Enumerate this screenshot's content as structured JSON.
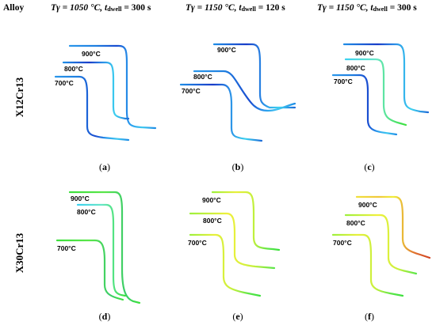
{
  "header": {
    "alloy": "Alloy",
    "columns": [
      {
        "t_gamma": "Tγ = 1050 °C,",
        "dwell_prefix": "t",
        "dwell_sub": "dwell",
        "dwell_value": "= 300 s"
      },
      {
        "t_gamma": "Tγ = 1150 °C,",
        "dwell_prefix": "t",
        "dwell_sub": "dwell",
        "dwell_value": "= 120 s"
      },
      {
        "t_gamma": "Tγ = 1150 °C,",
        "dwell_prefix": "t",
        "dwell_sub": "dwell",
        "dwell_value": "= 300 s"
      }
    ]
  },
  "rows": [
    {
      "alloy": "X12Cr13"
    },
    {
      "alloy": "X30Cr13"
    }
  ],
  "panels": [
    {
      "label": "a",
      "curve_labels": [
        "900°C",
        "800°C",
        "700°C"
      ],
      "palette": "blue"
    },
    {
      "label": "b",
      "curve_labels": [
        "900°C",
        "800°C",
        "700°C"
      ],
      "palette": "blue"
    },
    {
      "label": "c",
      "curve_labels": [
        "900°C",
        "800°C",
        "700°C"
      ],
      "palette": "blue"
    },
    {
      "label": "d",
      "curve_labels": [
        "900°C",
        "800°C",
        "700°C"
      ],
      "palette": "green"
    },
    {
      "label": "e",
      "curve_labels": [
        "900°C",
        "800°C",
        "700°C"
      ],
      "palette": "yellowgreen"
    },
    {
      "label": "f",
      "curve_labels": [
        "900°C",
        "800°C",
        "700°C"
      ],
      "palette": "yellowred"
    }
  ],
  "colors": {
    "blue_main": "#1e8ce6",
    "blue_dark": "#1a3cc8",
    "cyan": "#3cd2f0",
    "green": "#3ce03c",
    "light_green": "#9ef03c",
    "yellow": "#f0f03c",
    "red": "#e04020"
  }
}
